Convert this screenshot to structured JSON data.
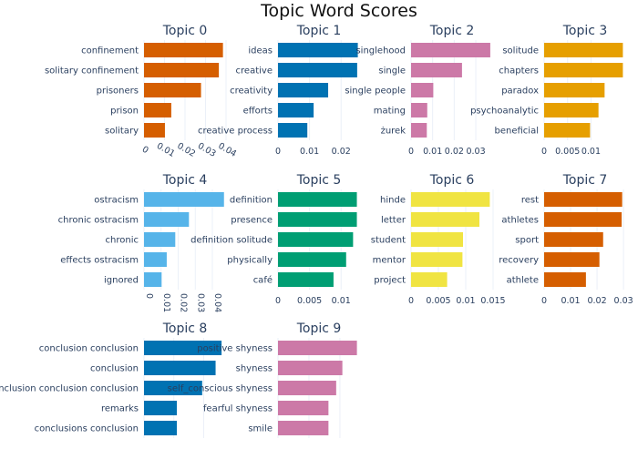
{
  "title": "Topic Word Scores",
  "chart_data": [
    {
      "type": "bar",
      "orientation": "horizontal",
      "title": "Topic 0",
      "color": "#D55E00",
      "categories": [
        "confinement",
        "solitary confinement",
        "prisoners",
        "prison",
        "solitary"
      ],
      "values": [
        0.0385,
        0.0365,
        0.0278,
        0.0133,
        0.0102
      ],
      "xlim": [
        0,
        0.04
      ],
      "xticks": [
        "0",
        "0.01",
        "0.02",
        "0.03",
        "0.04"
      ],
      "xtick_values": [
        0,
        0.01,
        0.02,
        0.03,
        0.04
      ],
      "xtick_angle": 30
    },
    {
      "type": "bar",
      "orientation": "horizontal",
      "title": "Topic 1",
      "color": "#0072B2",
      "categories": [
        "ideas",
        "creative",
        "creativity",
        "efforts",
        "creative process"
      ],
      "values": [
        0.0253,
        0.0251,
        0.0159,
        0.0113,
        0.0093
      ],
      "xlim": [
        0,
        0.026
      ],
      "xticks": [
        "0",
        "0.01",
        "0.02"
      ],
      "xtick_values": [
        0,
        0.01,
        0.02
      ],
      "xtick_angle": 0
    },
    {
      "type": "bar",
      "orientation": "horizontal",
      "title": "Topic 2",
      "color": "#CC79A7",
      "categories": [
        "singlehood",
        "single",
        "single people",
        "mating",
        "żurek"
      ],
      "values": [
        0.0367,
        0.0236,
        0.0103,
        0.0075,
        0.0073
      ],
      "xlim": [
        0,
        0.038
      ],
      "xticks": [
        "0",
        "0.01",
        "0.02",
        "0.03"
      ],
      "xtick_values": [
        0,
        0.01,
        0.02,
        0.03
      ],
      "xtick_angle": 0
    },
    {
      "type": "bar",
      "orientation": "horizontal",
      "title": "Topic 3",
      "color": "#E69F00",
      "categories": [
        "solitude",
        "chapters",
        "paradox",
        "psychoanalytic",
        "beneficial"
      ],
      "values": [
        0.0168,
        0.0168,
        0.0129,
        0.0116,
        0.0098
      ],
      "xlim": [
        0,
        0.0175
      ],
      "xticks": [
        "0",
        "0.005",
        "0.01"
      ],
      "xtick_values": [
        0,
        0.005,
        0.01
      ],
      "xtick_angle": 0
    },
    {
      "type": "bar",
      "orientation": "horizontal",
      "title": "Topic 4",
      "color": "#56B4E9",
      "categories": [
        "ostracism",
        "chronic ostracism",
        "chronic",
        "effects ostracism",
        "ignored"
      ],
      "values": [
        0.0468,
        0.0263,
        0.0183,
        0.0133,
        0.0103
      ],
      "xlim": [
        0,
        0.048
      ],
      "xticks": [
        "0",
        "0.01",
        "0.02",
        "0.03",
        "0.04"
      ],
      "xtick_values": [
        0,
        0.01,
        0.02,
        0.03,
        0.04
      ],
      "xtick_angle": 90
    },
    {
      "type": "bar",
      "orientation": "horizontal",
      "title": "Topic 5",
      "color": "#009E73",
      "categories": [
        "definition",
        "presence",
        "definition solitude",
        "physically",
        "café"
      ],
      "values": [
        0.0125,
        0.0125,
        0.0119,
        0.0108,
        0.0088
      ],
      "xlim": [
        0,
        0.013
      ],
      "xticks": [
        "0",
        "0.005",
        "0.01"
      ],
      "xtick_values": [
        0,
        0.005,
        0.01
      ],
      "xtick_angle": 0
    },
    {
      "type": "bar",
      "orientation": "horizontal",
      "title": "Topic 6",
      "color": "#F0E442",
      "categories": [
        "hinde",
        "letter",
        "student",
        "mentor",
        "project"
      ],
      "values": [
        0.0144,
        0.0125,
        0.0095,
        0.0094,
        0.0066
      ],
      "xlim": [
        0,
        0.015
      ],
      "xticks": [
        "0",
        "0.005",
        "0.01",
        "0.015"
      ],
      "xtick_values": [
        0,
        0.005,
        0.01,
        0.015
      ],
      "xtick_angle": 0
    },
    {
      "type": "bar",
      "orientation": "horizontal",
      "title": "Topic 7",
      "color": "#D55E00",
      "categories": [
        "rest",
        "athletes",
        "sport",
        "recovery",
        "athlete"
      ],
      "values": [
        0.0295,
        0.0293,
        0.0223,
        0.0209,
        0.0158
      ],
      "xlim": [
        0,
        0.031
      ],
      "xticks": [
        "0",
        "0.01",
        "0.02",
        "0.03"
      ],
      "xtick_values": [
        0,
        0.01,
        0.02,
        0.03
      ],
      "xtick_angle": 0
    },
    {
      "type": "bar",
      "orientation": "horizontal",
      "title": "Topic 8",
      "color": "#0072B2",
      "categories": [
        "conclusion conclusion",
        "conclusion",
        "conclusion conclusion conclusion",
        "remarks",
        "conclusions conclusion"
      ],
      "values": [
        0.52,
        0.48,
        0.39,
        0.22,
        0.22
      ],
      "xlim": [
        0,
        0.55
      ],
      "xticks": [
        "0",
        "0.2",
        "0.4"
      ],
      "xtick_values": [
        0,
        0.2,
        0.4
      ],
      "xtick_angle": 0
    },
    {
      "type": "bar",
      "orientation": "horizontal",
      "title": "Topic 9",
      "color": "#CC79A7",
      "categories": [
        "positive shyness",
        "shyness",
        "self_conscious shyness",
        "fearful shyness",
        "smile"
      ],
      "values": [
        0.0255,
        0.0208,
        0.0188,
        0.0163,
        0.0163
      ],
      "xlim": [
        0,
        0.0265
      ],
      "xticks": [
        "0",
        "0.01",
        "0.02"
      ],
      "xtick_values": [
        0,
        0.01,
        0.02
      ],
      "xtick_angle": 0
    }
  ]
}
